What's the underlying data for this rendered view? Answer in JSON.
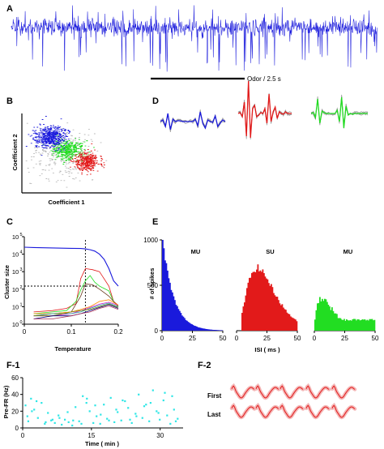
{
  "panels": {
    "A": "A",
    "B": "B",
    "C": "C",
    "D": "D",
    "E": "E",
    "F1": "F-1",
    "F2": "F-2"
  },
  "colors": {
    "blue": "#1a1adc",
    "red": "#e21a1a",
    "green": "#22dd22",
    "cyan": "#2ee6e6",
    "black": "#000000",
    "gray": "#9a9a9a"
  },
  "chart_data": [
    {
      "panel": "A",
      "type": "line",
      "annotation": "Odor / 2.5 s",
      "series": [
        {
          "color": "blue"
        }
      ]
    },
    {
      "panel": "B",
      "type": "scatter",
      "xlabel": "Coefficient 1",
      "ylabel": "Coefficient 2",
      "clusters": [
        {
          "color": "blue",
          "center": [
            0.3,
            0.72
          ],
          "spread": [
            0.09,
            0.07
          ],
          "n": 900
        },
        {
          "color": "green",
          "center": [
            0.5,
            0.55
          ],
          "spread": [
            0.09,
            0.06
          ],
          "n": 650
        },
        {
          "color": "red",
          "center": [
            0.72,
            0.4
          ],
          "spread": [
            0.07,
            0.06
          ],
          "n": 650
        },
        {
          "color": "gray",
          "center": [
            0.45,
            0.5
          ],
          "spread": [
            0.2,
            0.16
          ],
          "n": 500
        }
      ]
    },
    {
      "panel": "C",
      "type": "line",
      "scale": "log",
      "xlabel": "Temperature",
      "ylabel": "Cluster size",
      "xlim": [
        0,
        0.2
      ],
      "ylim": [
        1,
        100000
      ],
      "xticks": [
        "0",
        "0.1",
        "0.2"
      ],
      "yticks": [
        "10",
        "10",
        "10",
        "10",
        "10",
        "10"
      ],
      "ytick_exponents": [
        "0",
        "1",
        "2",
        "3",
        "4",
        "5"
      ],
      "threshold_x": 0.13,
      "threshold_y": 150,
      "series": [
        {
          "color": "blue",
          "x": [
            0,
            0.02,
            0.05,
            0.08,
            0.1,
            0.12,
            0.13,
            0.14,
            0.15,
            0.16,
            0.17,
            0.18,
            0.19,
            0.2
          ],
          "y": [
            25000,
            24000,
            23000,
            22000,
            21500,
            21000,
            20000,
            18000,
            15000,
            10000,
            5000,
            1500,
            300,
            150
          ]
        },
        {
          "color": "red",
          "x": [
            0.02,
            0.06,
            0.09,
            0.11,
            0.12,
            0.13,
            0.145,
            0.16,
            0.18,
            0.19,
            0.2
          ],
          "y": [
            5,
            6,
            8,
            15,
            400,
            1500,
            1300,
            1000,
            150,
            20,
            12
          ]
        },
        {
          "color": "green",
          "x": [
            0.02,
            0.06,
            0.09,
            0.11,
            0.12,
            0.13,
            0.14,
            0.15,
            0.16,
            0.18,
            0.19,
            0.2
          ],
          "y": [
            4,
            5,
            6,
            20,
            90,
            300,
            600,
            250,
            150,
            80,
            20,
            10
          ]
        },
        {
          "color": "#6b3a1f",
          "x": [
            0.02,
            0.06,
            0.1,
            0.12,
            0.13,
            0.145,
            0.16,
            0.18,
            0.2
          ],
          "y": [
            3,
            4,
            5,
            40,
            200,
            180,
            100,
            40,
            10
          ]
        },
        {
          "color": "#d11fd1",
          "x": [
            0.02,
            0.06,
            0.1,
            0.12,
            0.14,
            0.16,
            0.18,
            0.2
          ],
          "y": [
            3,
            3,
            4,
            6,
            9,
            14,
            18,
            12
          ]
        },
        {
          "color": "#ff8c00",
          "x": [
            0.02,
            0.06,
            0.1,
            0.12,
            0.14,
            0.16,
            0.18,
            0.2
          ],
          "y": [
            4,
            4,
            5,
            7,
            10,
            20,
            25,
            12
          ]
        },
        {
          "color": "#1fa0a0",
          "x": [
            0.02,
            0.06,
            0.1,
            0.12,
            0.14,
            0.16,
            0.18,
            0.2
          ],
          "y": [
            3,
            4,
            4,
            5,
            8,
            12,
            16,
            10
          ]
        },
        {
          "color": "#808000",
          "x": [
            0.02,
            0.06,
            0.1,
            0.12,
            0.14,
            0.16,
            0.18,
            0.2
          ],
          "y": [
            3,
            3,
            5,
            6,
            7,
            10,
            14,
            9
          ]
        },
        {
          "color": "#000080",
          "x": [
            0.02,
            0.06,
            0.1,
            0.12,
            0.14,
            0.16,
            0.18,
            0.2
          ],
          "y": [
            2,
            3,
            3,
            4,
            6,
            9,
            13,
            8
          ]
        },
        {
          "color": "#aa3355",
          "x": [
            0.02,
            0.06,
            0.1,
            0.12,
            0.14,
            0.16,
            0.18,
            0.2
          ],
          "y": [
            2,
            2,
            3,
            4,
            5,
            8,
            11,
            7
          ]
        }
      ]
    },
    {
      "panel": "D",
      "type": "line",
      "units": [
        {
          "color": "blue"
        },
        {
          "color": "red"
        },
        {
          "color": "green"
        }
      ]
    },
    {
      "panel": "E",
      "type": "bar",
      "xlabel": "ISI ( ms )",
      "ylabel": "# of spikes",
      "ylim": [
        0,
        1000
      ],
      "xlim": [
        0,
        50
      ],
      "yticks": [
        "1000",
        "500",
        "0"
      ],
      "xticks": [
        "0",
        "25",
        "50"
      ],
      "subplots": [
        {
          "label": "MU",
          "color": "blue",
          "peak_x": 1,
          "peak_y": 950,
          "shape": "decay"
        },
        {
          "label": "SU",
          "color": "red",
          "peak_x": 17,
          "peak_y": 690,
          "shape": "skewed"
        },
        {
          "label": "MU",
          "color": "green",
          "peak_x": 6,
          "peak_y": 380,
          "shape": "broad"
        }
      ]
    },
    {
      "panel": "F-1",
      "type": "scatter",
      "xlabel": "Time ( min )",
      "ylabel": "Pre-FR (Hz)",
      "xlim": [
        0,
        35
      ],
      "ylim": [
        0,
        60
      ],
      "xticks": [
        "0",
        "15",
        "30"
      ],
      "yticks": [
        "60",
        "40",
        "20",
        "0"
      ],
      "color": "cyan",
      "x": [
        0.6,
        1.2,
        1.8,
        2.5,
        3.3,
        4.1,
        4.8,
        5.5,
        6.2,
        7.0,
        7.8,
        8.5,
        9.2,
        10.0,
        10.8,
        11.5,
        12.3,
        13.1,
        13.9,
        14.6,
        15.4,
        16.1,
        16.9,
        17.7,
        18.4,
        19.2,
        20.0,
        20.7,
        21.5,
        22.3,
        23.0,
        23.8,
        24.6,
        25.3,
        26.1,
        26.9,
        27.6,
        28.4,
        29.2,
        29.9,
        30.7,
        31.5,
        32.2,
        33.0,
        33.8,
        1.0,
        3.0,
        6.5,
        9.8,
        12.8,
        15.8,
        18.8,
        21.8,
        24.8,
        27.9,
        31.0,
        33.4,
        2.0,
        5.0,
        8.0,
        11.0,
        14.0,
        17.0,
        20.4,
        23.4,
        26.5,
        29.6,
        32.6
      ],
      "y": [
        27,
        8,
        35,
        22,
        12,
        30,
        5,
        18,
        9,
        6,
        15,
        4,
        10,
        7,
        3,
        25,
        8,
        38,
        30,
        20,
        6,
        14,
        5,
        28,
        11,
        36,
        7,
        19,
        9,
        32,
        24,
        6,
        17,
        40,
        12,
        28,
        8,
        45,
        20,
        10,
        33,
        15,
        5,
        22,
        11,
        14,
        32,
        10,
        19,
        5,
        27,
        9,
        33,
        14,
        30,
        42,
        8,
        20,
        7,
        12,
        9,
        35,
        16,
        22,
        10,
        26,
        18,
        38
      ]
    },
    {
      "panel": "F-2",
      "type": "line",
      "rows": [
        "First",
        "Last"
      ],
      "color": "red"
    }
  ]
}
